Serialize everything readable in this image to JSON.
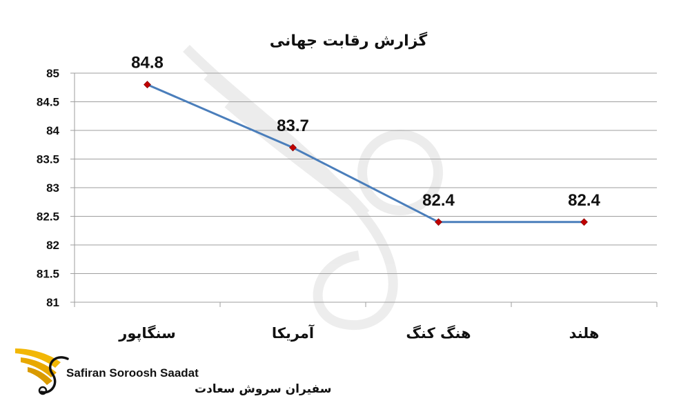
{
  "chart_data": {
    "type": "line",
    "title": "گزارش رقابت جهانی",
    "categories": [
      "سنگاپور",
      "آمریکا",
      "هنگ کنگ",
      "هلند"
    ],
    "series": [
      {
        "values": [
          84.8,
          83.7,
          82.4,
          82.4
        ]
      }
    ],
    "data_labels": [
      "84.8",
      "83.7",
      "82.4",
      "82.4"
    ],
    "ylim": [
      81,
      85
    ],
    "yticks": [
      81,
      81.5,
      82,
      82.5,
      83,
      83.5,
      84,
      84.5,
      85
    ],
    "ytick_labels": [
      "81",
      "81.5",
      "82",
      "82.5",
      "83",
      "83.5",
      "84",
      "84.5",
      "85"
    ],
    "xlabel": "",
    "ylabel": "",
    "grid": true,
    "legend": "none",
    "colors": {
      "line": "#4A7EBB",
      "marker": "#C00000",
      "grid": "#9E9E9E",
      "axis": "#9E9E9E",
      "brand_gold": "#F2B705"
    }
  },
  "brand": {
    "name_en": "Safiran Soroosh Saadat",
    "name_fa": "سفیران سروش سعادت",
    "logo_icon": "winged-s-logo-icon",
    "watermark_icon": "wing-watermark-icon"
  }
}
